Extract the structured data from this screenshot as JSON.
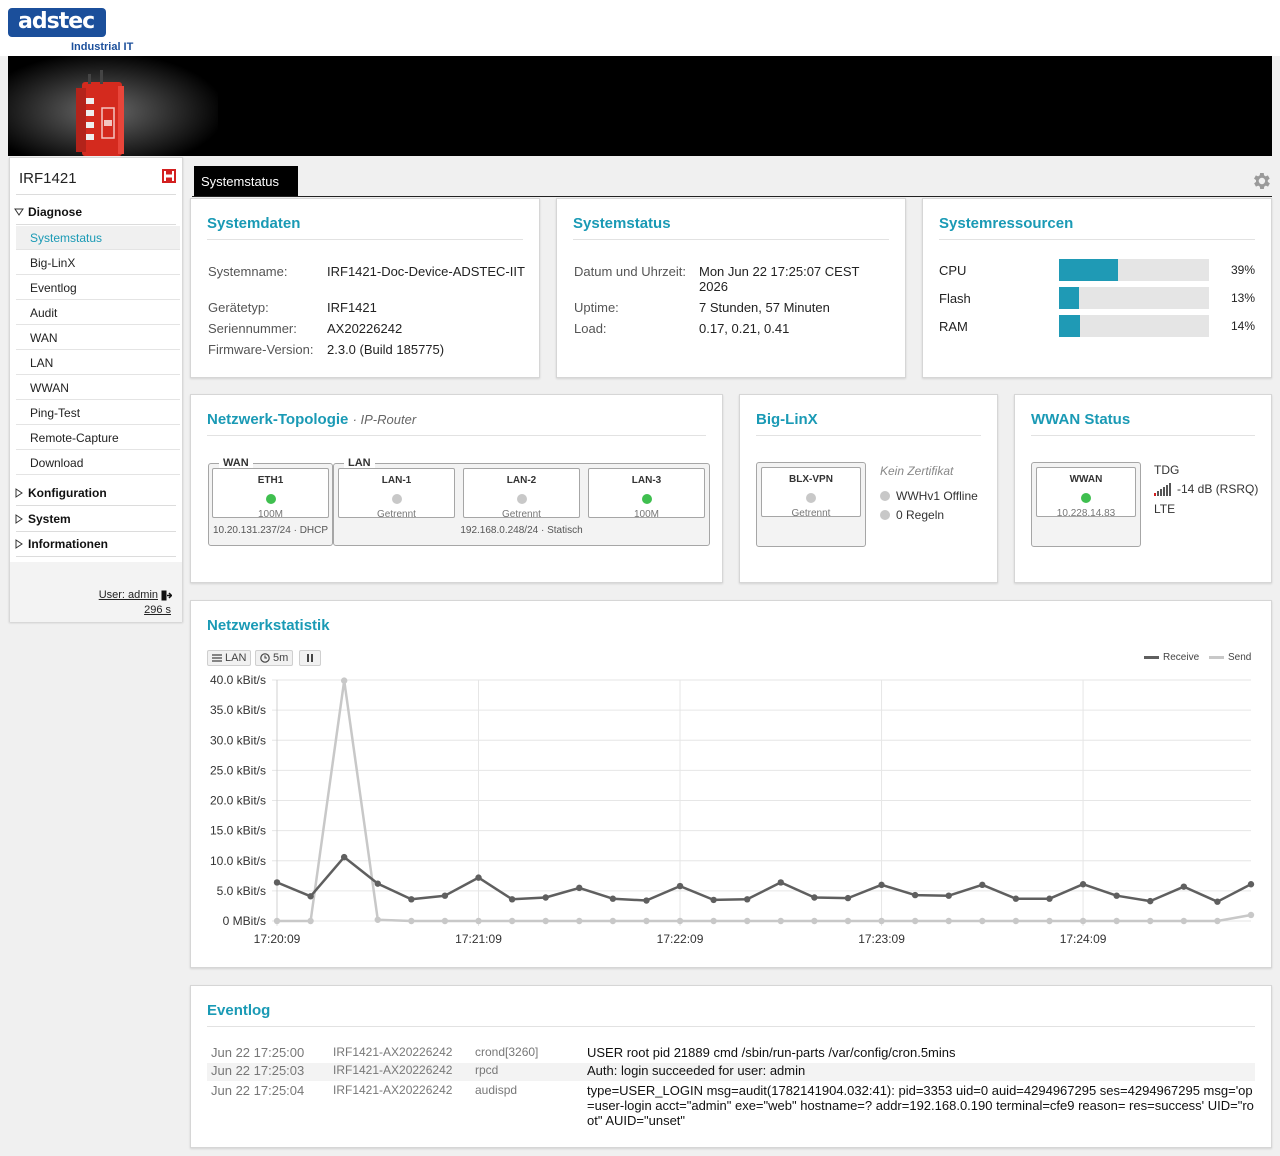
{
  "brand": {
    "logo": "adstec",
    "subtitle": "Industrial IT"
  },
  "sidebar": {
    "device_name": "IRF1421",
    "groups": [
      {
        "label": "Diagnose",
        "expanded": true,
        "items": [
          {
            "label": "Systemstatus",
            "active": true
          },
          {
            "label": "Big-LinX"
          },
          {
            "label": "Eventlog"
          },
          {
            "label": "Audit"
          },
          {
            "label": "WAN"
          },
          {
            "label": "LAN"
          },
          {
            "label": "WWAN"
          },
          {
            "label": "Ping-Test"
          },
          {
            "label": "Remote-Capture"
          },
          {
            "label": "Download"
          }
        ]
      },
      {
        "label": "Konfiguration",
        "expanded": false
      },
      {
        "label": "System",
        "expanded": false
      },
      {
        "label": "Informationen",
        "expanded": false
      }
    ],
    "user": "User: admin",
    "timer": "296 s"
  },
  "tabs": {
    "active": "Systemstatus"
  },
  "systemdaten": {
    "title": "Systemdaten",
    "rows": [
      {
        "label": "Systemname:",
        "value": "IRF1421-Doc-Device-ADSTEC-IIT"
      },
      {
        "label": "Gerätetyp:",
        "value": "IRF1421"
      },
      {
        "label": "Seriennummer:",
        "value": "AX20226242"
      },
      {
        "label": "Firmware-Version:",
        "value": "2.3.0 (Build 185775)"
      }
    ]
  },
  "systemstatus": {
    "title": "Systemstatus",
    "rows": [
      {
        "label": "Datum und Uhrzeit:",
        "value": "Mon Jun 22 17:25:07 CEST 2026"
      },
      {
        "label": "Uptime:",
        "value": "7 Stunden, 57 Minuten"
      },
      {
        "label": "Load:",
        "value": "0.17, 0.21, 0.41"
      }
    ]
  },
  "ressourcen": {
    "title": "Systemressourcen",
    "items": [
      {
        "label": "CPU",
        "percent": 39,
        "text": "39%"
      },
      {
        "label": "Flash",
        "percent": 13,
        "text": "13%"
      },
      {
        "label": "RAM",
        "percent": 14,
        "text": "14%"
      }
    ],
    "bar_color": "#1f9ab5"
  },
  "topologie": {
    "title": "Netzwerk-Topologie",
    "subtitle": "· IP-Router",
    "wan": {
      "legend": "WAN",
      "port": {
        "name": "ETH1",
        "status": "green",
        "state": "100M"
      },
      "caption": "10.20.131.237/24 · DHCP"
    },
    "lan": {
      "legend": "LAN",
      "ports": [
        {
          "name": "LAN-1",
          "status": "gray",
          "state": "Getrennt"
        },
        {
          "name": "LAN-2",
          "status": "gray",
          "state": "Getrennt"
        },
        {
          "name": "LAN-3",
          "status": "green",
          "state": "100M"
        }
      ],
      "caption": "192.168.0.248/24 · Statisch"
    }
  },
  "biglinx": {
    "title": "Big-LinX",
    "port": {
      "name": "BLX-VPN",
      "status": "gray",
      "state": "Getrennt"
    },
    "cert": "Kein Zertifikat",
    "notes": [
      "WWHv1 Offline",
      "0 Regeln"
    ]
  },
  "wwan": {
    "title": "WWAN Status",
    "port": {
      "name": "WWAN",
      "status": "green",
      "state": "10.228.14.83"
    },
    "provider": "TDG",
    "signal": "-14 dB (RSRQ)",
    "tech": "LTE"
  },
  "netzstat": {
    "title": "Netzwerkstatistik",
    "controls": {
      "interface": "LAN",
      "interval": "5m"
    },
    "legend": {
      "receive": "Receive",
      "send": "Send"
    },
    "colors": {
      "receive": "#5f5f5f",
      "send": "#c8c8c8"
    }
  },
  "chart_data": {
    "type": "line",
    "y_ticks": [
      "0 MBit/s",
      "5.0 kBit/s",
      "10.0 kBit/s",
      "15.0 kBit/s",
      "20.0 kBit/s",
      "25.0 kBit/s",
      "30.0 kBit/s",
      "35.0 kBit/s",
      "40.0 kBit/s"
    ],
    "x_ticks": [
      "17:20:09",
      "17:21:09",
      "17:22:09",
      "17:23:09",
      "17:24:09"
    ],
    "ylim": [
      0,
      40
    ],
    "x_interval_s": 10,
    "series": [
      {
        "name": "Receive",
        "values": [
          6.4,
          4.1,
          10.6,
          6.2,
          3.6,
          4.2,
          7.2,
          3.6,
          3.9,
          5.5,
          3.7,
          3.4,
          5.8,
          3.5,
          3.6,
          6.4,
          3.9,
          3.8,
          6.0,
          4.3,
          4.2,
          6.0,
          3.7,
          3.7,
          6.1,
          4.2,
          3.3,
          5.7,
          3.2,
          6.1
        ]
      },
      {
        "name": "Send",
        "values": [
          0,
          0,
          39.9,
          0.2,
          0,
          0,
          0,
          0,
          0,
          0,
          0,
          0,
          0,
          0,
          0,
          0,
          0,
          0,
          0,
          0,
          0,
          0,
          0,
          0,
          0,
          0,
          0,
          0,
          0,
          1.0
        ]
      }
    ],
    "grid": true,
    "legend": "top-right"
  },
  "eventlog": {
    "title": "Eventlog",
    "rows": [
      {
        "date": "Jun 22 17:25:00",
        "host": "IRF1421-AX20226242",
        "proc": "crond[3260]",
        "msg": "USER root pid 21889 cmd /sbin/run-parts /var/config/cron.5mins"
      },
      {
        "date": "Jun 22 17:25:03",
        "host": "IRF1421-AX20226242",
        "proc": "rpcd",
        "msg": "Auth: login succeeded for user: admin"
      },
      {
        "date": "Jun 22 17:25:04",
        "host": "IRF1421-AX20226242",
        "proc": "audispd",
        "msg": "type=USER_LOGIN msg=audit(1782141904.032:41): pid=3353 uid=0 auid=4294967295 ses=4294967295 msg='op=user-login acct=\"admin\" exe=\"web\" hostname=? addr=192.168.0.190 terminal=cfe9 reason= res=success' UID=\"root\" AUID=\"unset\""
      }
    ]
  }
}
